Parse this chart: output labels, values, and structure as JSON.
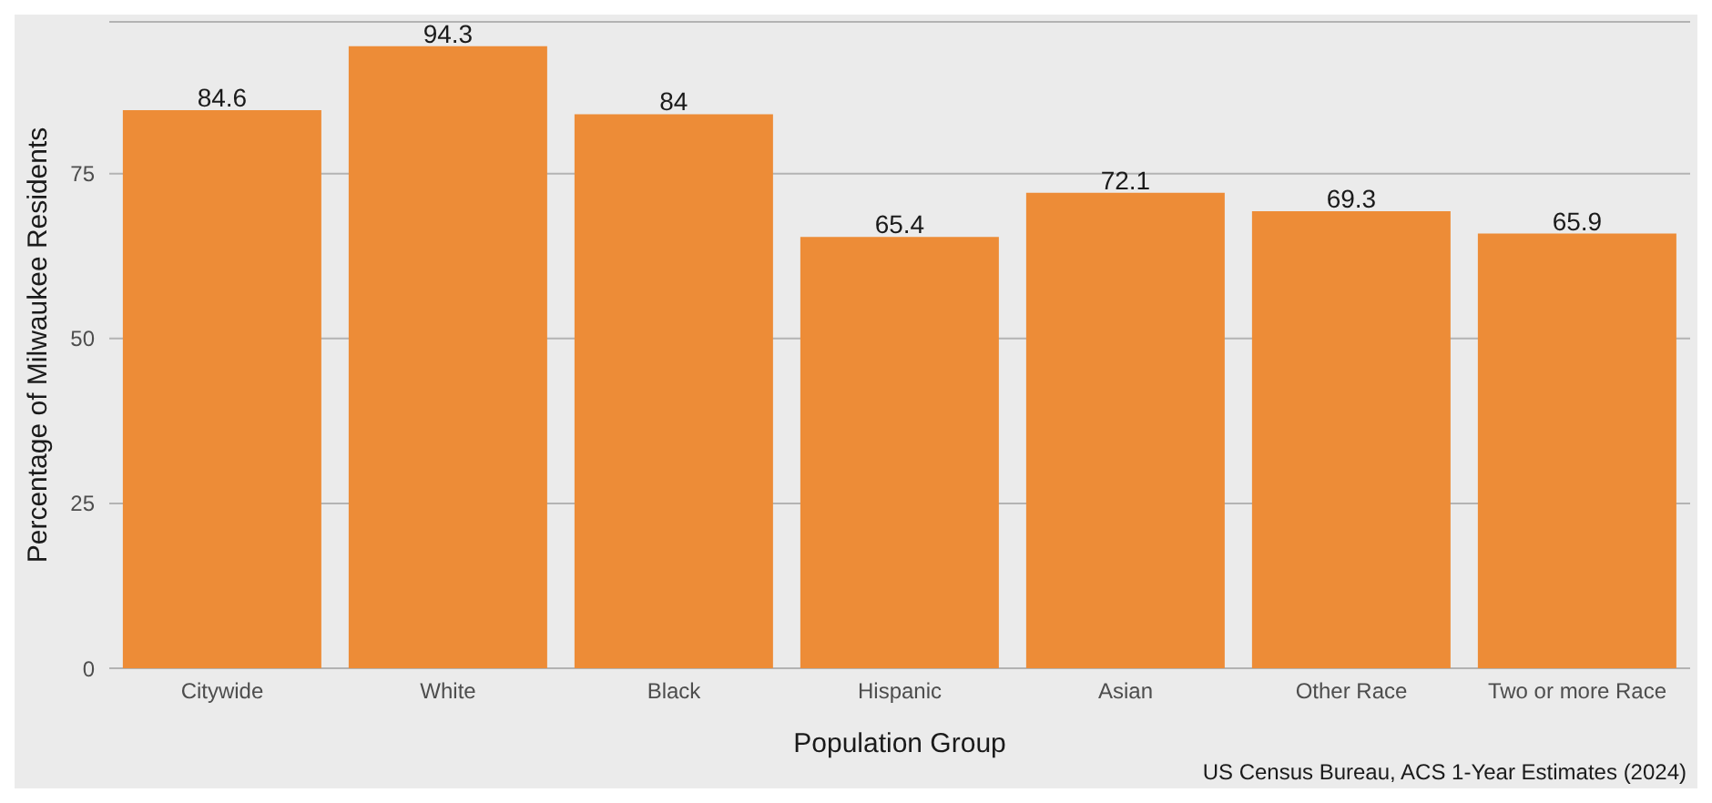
{
  "chart_data": {
    "type": "bar",
    "xlabel": "Population Group",
    "ylabel": "Percentage of Milwaukee Residents",
    "categories": [
      "Citywide",
      "White",
      "Black",
      "Hispanic",
      "Asian",
      "Other Race",
      "Two or more Race"
    ],
    "values": [
      84.6,
      94.3,
      84,
      65.4,
      72.1,
      69.3,
      65.9
    ],
    "color": "#ed8c37",
    "data_labels": true,
    "ylim": [
      0,
      98
    ],
    "yticks": [
      0,
      25,
      50,
      75
    ],
    "grid": "y",
    "annotations": [
      "US Census Bureau, ACS 1-Year Estimates (2024)"
    ]
  }
}
